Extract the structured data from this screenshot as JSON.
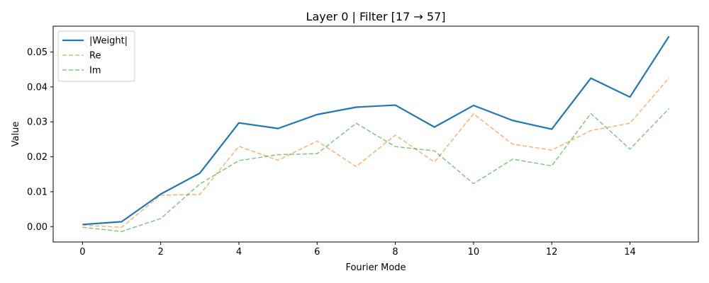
{
  "chart_data": {
    "type": "line",
    "title": "Layer 0 | Filter [17 → 57]",
    "xlabel": "Fourier Mode",
    "ylabel": "Value",
    "xlim": [
      -0.75,
      15.75
    ],
    "ylim": [
      -0.0044,
      0.0574
    ],
    "xticks": [
      0,
      2,
      4,
      6,
      8,
      10,
      12,
      14
    ],
    "xtick_labels": [
      "0",
      "2",
      "4",
      "6",
      "8",
      "10",
      "12",
      "14"
    ],
    "yticks": [
      0.0,
      0.01,
      0.02,
      0.03,
      0.04,
      0.05
    ],
    "ytick_labels": [
      "0.00",
      "0.01",
      "0.02",
      "0.03",
      "0.04",
      "0.05"
    ],
    "grid": false,
    "legend_position": "upper-left",
    "x": [
      0,
      1,
      2,
      3,
      4,
      5,
      6,
      7,
      8,
      9,
      10,
      11,
      12,
      13,
      14,
      15
    ],
    "series": [
      {
        "name": "|Weight|",
        "style": "solid",
        "color": "#1f77b4",
        "values": [
          0.0006,
          0.0014,
          0.0093,
          0.0153,
          0.0297,
          0.0281,
          0.0321,
          0.0342,
          0.0348,
          0.0285,
          0.0347,
          0.0304,
          0.0279,
          0.0425,
          0.0371,
          0.0545
        ]
      },
      {
        "name": "Re",
        "style": "dashed",
        "color": "#ff7f0e",
        "values": [
          0.0004,
          -0.0002,
          0.009,
          0.0092,
          0.023,
          0.019,
          0.0245,
          0.0172,
          0.0262,
          0.0185,
          0.0323,
          0.0236,
          0.0219,
          0.0275,
          0.0296,
          0.0426
        ]
      },
      {
        "name": "Im",
        "style": "dashed",
        "color": "#2ca02c",
        "values": [
          -0.0002,
          -0.0014,
          0.0023,
          0.0122,
          0.0189,
          0.0206,
          0.0209,
          0.0296,
          0.0229,
          0.0217,
          0.0123,
          0.0193,
          0.0174,
          0.0324,
          0.0222,
          0.0338
        ]
      }
    ]
  }
}
